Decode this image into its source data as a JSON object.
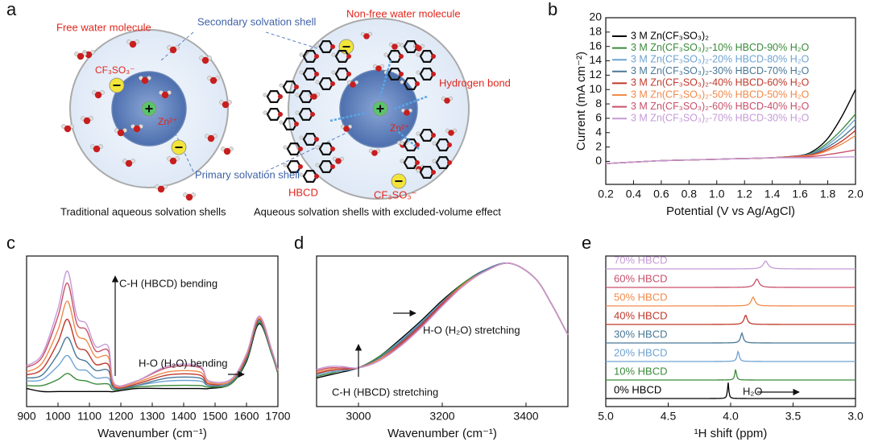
{
  "panel_labels": [
    "a",
    "b",
    "c",
    "d",
    "e"
  ],
  "diagram": {
    "labels": [
      "Free water molecule",
      "Secondary solvation shell",
      "Non-free water molecule",
      "CF₃SO₃⁻",
      "Zn²⁺",
      "Primary solvation shell",
      "Hydrogen bond",
      "HBCD",
      "CF₃SO₃⁻",
      "Zn²⁺"
    ],
    "captions": [
      "Traditional aqueous solvation shells",
      "Aqueous solvation shells with excluded-volume effect"
    ]
  },
  "chart_data": [
    {
      "type": "line",
      "xlabel": "Potential (V vs Ag/AgCl)",
      "ylabel": "Current (mA cm⁻²)",
      "x": [
        0.2,
        0.4,
        0.6,
        0.8,
        1.0,
        1.2,
        1.4,
        1.6,
        1.7,
        1.8,
        1.9,
        2.0
      ],
      "xlim": [
        0.2,
        2.0
      ],
      "xticks": [
        0.2,
        0.4,
        0.6,
        0.8,
        {
          "value": 1.0,
          "label": "1.0"
        },
        1.2,
        1.4,
        1.6,
        1.8,
        {
          "value": 2.0,
          "label": "2.0"
        }
      ],
      "ylim": [
        -3.2,
        20
      ],
      "yticks": [
        0,
        2,
        4,
        6,
        8,
        10,
        12,
        14,
        16,
        18,
        20
      ],
      "legend": "upper left",
      "series": [
        {
          "name": "3 M Zn(CF₃SO₃)₂",
          "color": "#000000",
          "values": [
            -0.3,
            -0.1,
            0.1,
            0.2,
            0.3,
            0.4,
            0.5,
            0.8,
            1.5,
            3.2,
            6.2,
            10
          ]
        },
        {
          "name": "3 M Zn(CF₃SO₃)₂-10% HBCD-90% H₂O",
          "color": "#3a8a3a",
          "values": [
            -0.3,
            -0.1,
            0.1,
            0.2,
            0.3,
            0.4,
            0.5,
            0.8,
            1.3,
            2.6,
            4.4,
            6.6
          ]
        },
        {
          "name": "3 M Zn(CF₃SO₃)₂-20% HBCD-80% H₂O",
          "color": "#6fa3d2",
          "values": [
            -0.3,
            -0.1,
            0.1,
            0.2,
            0.3,
            0.4,
            0.5,
            0.8,
            1.2,
            2.3,
            3.9,
            5.9
          ]
        },
        {
          "name": "3 M Zn(CF₃SO₃)₂-30% HBCD-70% H₂O",
          "color": "#4a7896",
          "values": [
            -0.3,
            -0.1,
            0.1,
            0.2,
            0.3,
            0.4,
            0.5,
            0.8,
            1.1,
            2.0,
            3.3,
            5.0
          ]
        },
        {
          "name": "3 M Zn(CF₃SO₃)₂-40% HBCD-60% H₂O",
          "color": "#c0392b",
          "values": [
            -0.3,
            -0.1,
            0.1,
            0.2,
            0.3,
            0.4,
            0.5,
            0.75,
            1.0,
            1.7,
            2.8,
            4.3
          ]
        },
        {
          "name": "3 M Zn(CF₃SO₃)₂-50% HBCD-50% H₂O",
          "color": "#f08a4b",
          "values": [
            -0.3,
            -0.1,
            0.1,
            0.2,
            0.3,
            0.4,
            0.5,
            0.7,
            0.9,
            1.5,
            2.4,
            3.6
          ]
        },
        {
          "name": "3 M Zn(CF₃SO₃)₂-60% HBCD-40% H₂O",
          "color": "#c8506a",
          "values": [
            -0.3,
            -0.1,
            0.1,
            0.2,
            0.3,
            0.4,
            0.5,
            0.6,
            0.7,
            0.95,
            1.25,
            1.6
          ]
        },
        {
          "name": "3 M Zn(CF₃SO₃)₂-70% HBCD-30% H₂O",
          "color": "#c59ad6",
          "values": [
            -0.3,
            -0.1,
            0.1,
            0.2,
            0.3,
            0.4,
            0.5,
            0.5,
            0.5,
            0.55,
            0.6,
            0.65
          ]
        }
      ]
    },
    {
      "type": "line",
      "xlabel": "Wavenumber (cm⁻¹)",
      "annotations": [
        "C-H (HBCD) bending",
        "H-O (H₂O) bending"
      ],
      "x": [
        900,
        950,
        1000,
        1030,
        1060,
        1090,
        1120,
        1160,
        1180,
        1250,
        1350,
        1450,
        1480,
        1550,
        1600,
        1640,
        1680,
        1700
      ],
      "xlim": [
        900,
        1700
      ],
      "xticks": [
        900,
        1000,
        1100,
        1200,
        1300,
        1400,
        1500,
        1600,
        1700
      ],
      "ylim": [
        0,
        1
      ],
      "series": [
        {
          "color": "#000000",
          "values": [
            0.12,
            0.1,
            0.1,
            0.1,
            0.1,
            0.1,
            0.1,
            0.1,
            0.1,
            0.12,
            0.12,
            0.12,
            0.12,
            0.15,
            0.3,
            0.55,
            0.35,
            0.22
          ]
        },
        {
          "color": "#3a8a3a",
          "values": [
            0.14,
            0.14,
            0.18,
            0.22,
            0.18,
            0.17,
            0.15,
            0.15,
            0.11,
            0.13,
            0.14,
            0.14,
            0.13,
            0.15,
            0.31,
            0.56,
            0.35,
            0.22
          ]
        },
        {
          "color": "#6fa3d2",
          "values": [
            0.17,
            0.18,
            0.27,
            0.34,
            0.25,
            0.24,
            0.19,
            0.19,
            0.12,
            0.14,
            0.17,
            0.17,
            0.14,
            0.16,
            0.32,
            0.57,
            0.36,
            0.23
          ]
        },
        {
          "color": "#4a7896",
          "values": [
            0.19,
            0.21,
            0.35,
            0.46,
            0.33,
            0.3,
            0.24,
            0.24,
            0.12,
            0.14,
            0.19,
            0.19,
            0.14,
            0.16,
            0.32,
            0.57,
            0.36,
            0.23
          ]
        },
        {
          "color": "#c0392b",
          "values": [
            0.21,
            0.25,
            0.43,
            0.58,
            0.4,
            0.37,
            0.28,
            0.28,
            0.13,
            0.15,
            0.21,
            0.21,
            0.15,
            0.17,
            0.33,
            0.58,
            0.37,
            0.23
          ]
        },
        {
          "color": "#f08a4b",
          "values": [
            0.23,
            0.29,
            0.51,
            0.7,
            0.48,
            0.44,
            0.33,
            0.33,
            0.14,
            0.16,
            0.23,
            0.23,
            0.16,
            0.17,
            0.34,
            0.59,
            0.37,
            0.24
          ]
        },
        {
          "color": "#c8506a",
          "values": [
            0.26,
            0.33,
            0.6,
            0.82,
            0.55,
            0.51,
            0.37,
            0.37,
            0.15,
            0.17,
            0.26,
            0.26,
            0.17,
            0.18,
            0.35,
            0.6,
            0.38,
            0.24
          ]
        },
        {
          "color": "#c59ad6",
          "values": [
            0.27,
            0.35,
            0.65,
            0.9,
            0.6,
            0.55,
            0.4,
            0.4,
            0.15,
            0.17,
            0.27,
            0.27,
            0.17,
            0.18,
            0.35,
            0.6,
            0.38,
            0.24
          ]
        }
      ]
    },
    {
      "type": "line",
      "xlabel": "Wavenumber (cm⁻¹)",
      "annotations": [
        "H-O (H₂O) stretching",
        "C-H (HBCD) stretching"
      ],
      "x": [
        2900,
        2930,
        2960,
        3000,
        3050,
        3100,
        3150,
        3200,
        3250,
        3300,
        3360,
        3420,
        3460,
        3500
      ],
      "xlim": [
        2900,
        3500
      ],
      "xticks": [
        3000,
        3200,
        3400
      ],
      "ylim": [
        0,
        1.05
      ],
      "series": [
        {
          "color": "#000000",
          "values": [
            0.2,
            0.22,
            0.24,
            0.27,
            0.35,
            0.47,
            0.6,
            0.74,
            0.86,
            0.95,
            1.0,
            0.9,
            0.72,
            0.5
          ]
        },
        {
          "color": "#3a8a3a",
          "values": [
            0.21,
            0.23,
            0.25,
            0.27,
            0.35,
            0.46,
            0.59,
            0.73,
            0.86,
            0.95,
            1.0,
            0.9,
            0.72,
            0.5
          ]
        },
        {
          "color": "#6fa3d2",
          "values": [
            0.22,
            0.24,
            0.25,
            0.27,
            0.34,
            0.46,
            0.59,
            0.73,
            0.85,
            0.95,
            1.0,
            0.9,
            0.72,
            0.5
          ]
        },
        {
          "color": "#4a7896",
          "values": [
            0.23,
            0.25,
            0.26,
            0.27,
            0.34,
            0.45,
            0.58,
            0.72,
            0.85,
            0.95,
            1.0,
            0.9,
            0.72,
            0.5
          ]
        },
        {
          "color": "#c0392b",
          "values": [
            0.23,
            0.25,
            0.26,
            0.27,
            0.33,
            0.44,
            0.57,
            0.72,
            0.85,
            0.94,
            1.0,
            0.9,
            0.72,
            0.5
          ]
        },
        {
          "color": "#f08a4b",
          "values": [
            0.24,
            0.26,
            0.27,
            0.27,
            0.33,
            0.43,
            0.56,
            0.71,
            0.85,
            0.94,
            1.0,
            0.9,
            0.72,
            0.5
          ]
        },
        {
          "color": "#c8506a",
          "values": [
            0.25,
            0.27,
            0.27,
            0.27,
            0.32,
            0.43,
            0.56,
            0.71,
            0.84,
            0.94,
            1.0,
            0.9,
            0.72,
            0.5
          ]
        },
        {
          "color": "#c59ad6",
          "values": [
            0.26,
            0.28,
            0.28,
            0.27,
            0.32,
            0.42,
            0.55,
            0.7,
            0.84,
            0.94,
            1.0,
            0.9,
            0.72,
            0.5
          ]
        }
      ]
    },
    {
      "type": "spectrum",
      "xlabel": "¹H shift (ppm)",
      "annotations": [
        "H₂O"
      ],
      "xlim": [
        5,
        3
      ],
      "xticks": [
        {
          "value": 5,
          "label": "5.0"
        },
        4.5,
        {
          "value": 4,
          "label": "4.0"
        },
        3.5,
        {
          "value": 3,
          "label": "3.0"
        }
      ],
      "series": [
        {
          "name": "0% HBCD",
          "color": "#000000",
          "peak": 4.02
        },
        {
          "name": "10% HBCD",
          "color": "#3a8a3a",
          "peak": 3.96
        },
        {
          "name": "20% HBCD",
          "color": "#6fa3d2",
          "peak": 3.94
        },
        {
          "name": "30% HBCD",
          "color": "#4a7896",
          "peak": 3.91
        },
        {
          "name": "40% HBCD",
          "color": "#c0392b",
          "peak": 3.88
        },
        {
          "name": "50% HBCD",
          "color": "#f08a4b",
          "peak": 3.82
        },
        {
          "name": "60% HBCD",
          "color": "#c8506a",
          "peak": 3.79
        },
        {
          "name": "70% HBCD",
          "color": "#c59ad6",
          "peak": 3.72
        }
      ]
    }
  ]
}
